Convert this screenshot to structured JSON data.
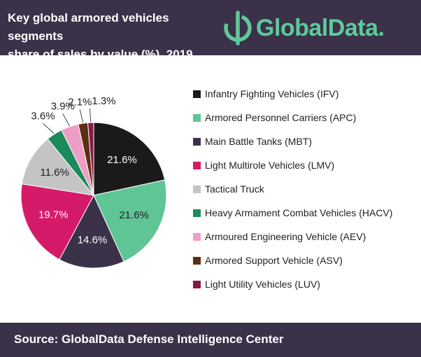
{
  "header": {
    "title_line1": "Key global armored vehicles segments",
    "title_line2": "share of sales by value (%), 2019",
    "brand_name": "GlobalData.",
    "brand_icon": "globaldata-logo-icon",
    "background_color": "#3b3249",
    "brand_color": "#5fc99a"
  },
  "footer": {
    "source": "Source:  GlobalData Defense Intelligence Center"
  },
  "chart_data": {
    "type": "pie",
    "start_angle_deg": 0,
    "direction": "clockwise",
    "value_suffix": "%",
    "legend_position": "right",
    "slices": [
      {
        "label": "Infantry Fighting Vehicles (IFV)",
        "value": 21.6,
        "color": "#1a1a1a",
        "label_color": "#ffffff"
      },
      {
        "label": "Armored Personnel Carriers (APC)",
        "value": 21.6,
        "color": "#5fc496",
        "label_color": "#222222"
      },
      {
        "label": "Main Battle Tanks (MBT)",
        "value": 14.6,
        "color": "#3b3249",
        "label_color": "#ffffff"
      },
      {
        "label": "Light Multirole Vehicles (LMV)",
        "value": 19.7,
        "color": "#d61a6a",
        "label_color": "#ffffff"
      },
      {
        "label": "Tactical Truck",
        "value": 11.6,
        "color": "#c4c4c4",
        "label_color": "#222222"
      },
      {
        "label": "Heavy Armament Combat Vehicles (HACV)",
        "value": 3.6,
        "color": "#1c8a5a",
        "label_color": "#222222"
      },
      {
        "label": "Armoured Engineering Vehicle (AEV)",
        "value": 3.9,
        "color": "#ed9dc6",
        "label_color": "#222222"
      },
      {
        "label": "Armored Support Vehicle (ASV)",
        "value": 2.1,
        "color": "#5a3012",
        "label_color": "#222222"
      },
      {
        "label": "Light Utility Vehicles (LUV)",
        "value": 1.3,
        "color": "#8a1845",
        "label_color": "#222222"
      }
    ]
  }
}
